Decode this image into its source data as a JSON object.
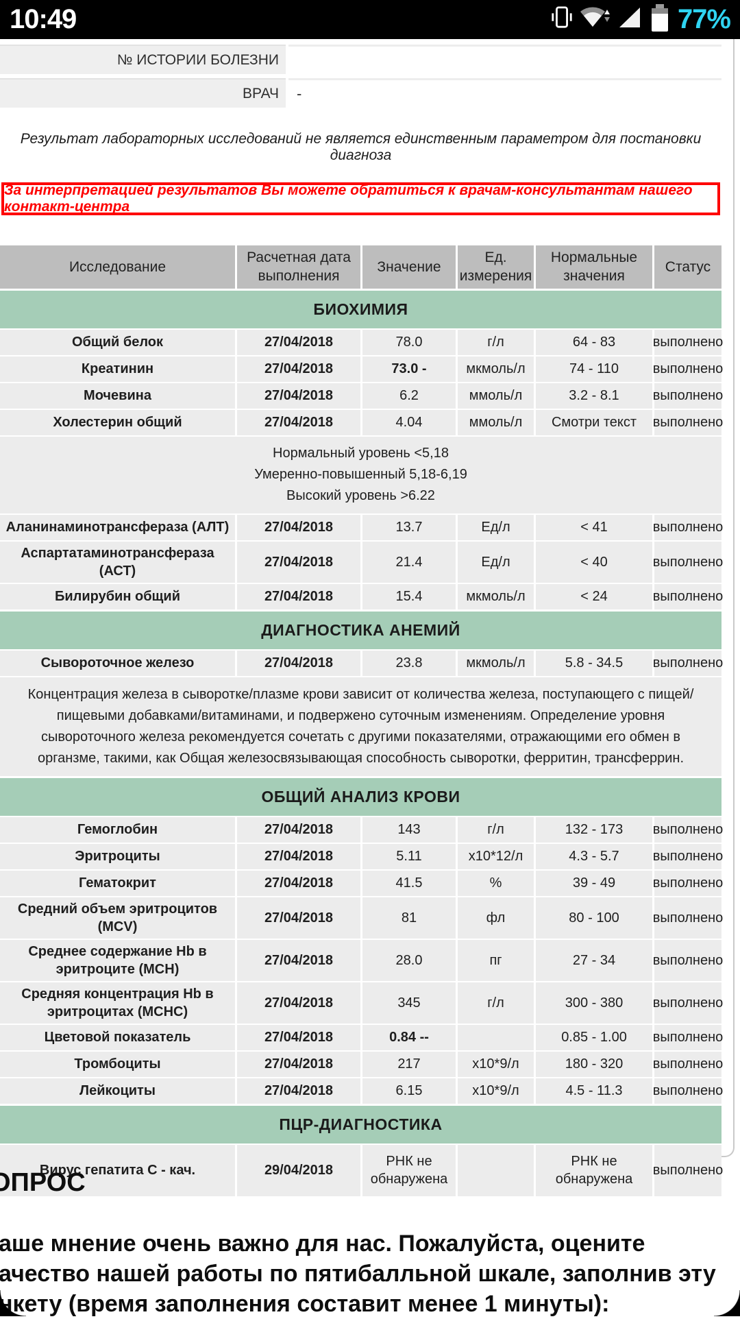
{
  "status_bar": {
    "time": "10:49",
    "battery_percent": "77%",
    "icons": [
      "vibrate-icon",
      "wifi-icon",
      "signal-icon",
      "battery-icon"
    ],
    "colors": {
      "background": "#000000",
      "time_text": "#ffffff",
      "battery_text": "#2fd4f2"
    }
  },
  "header_fields": [
    {
      "label": "№ ИСТОРИИ БОЛЕЗНИ",
      "value": ""
    },
    {
      "label": "ВРАЧ",
      "value": "-"
    }
  ],
  "disclaimer": "Результат лабораторных исследований не является единственным параметром для постановки диагноза",
  "warning": "За интерпретацией результатов Вы можете обратиться к врачам-консультантам нашего контакт-центра",
  "theme": {
    "section_band": "#a5cdb7",
    "table_header": "#bdbdbd",
    "row_background": "#ececec",
    "warning_red": "#fe0000"
  },
  "table": {
    "columns": [
      "Исследование",
      "Расчетная дата выполнения",
      "Значение",
      "Ед. измерения",
      "Нормальные значения",
      "Статус"
    ],
    "sections": [
      {
        "title": "БИОХИМИЯ",
        "items": [
          {
            "type": "row",
            "name": "Общий белок",
            "date": "27/04/2018",
            "value": "78.0",
            "unit": "г/л",
            "norm": "64 - 83",
            "status": "выполнено"
          },
          {
            "type": "row",
            "name": "Креатинин",
            "date": "27/04/2018",
            "value": "73.0 -",
            "value_flag": true,
            "unit": "мкмоль/л",
            "norm": "74 - 110",
            "status": "выполнено"
          },
          {
            "type": "row",
            "name": "Мочевина",
            "date": "27/04/2018",
            "value": "6.2",
            "unit": "ммоль/л",
            "norm": "3.2 - 8.1",
            "status": "выполнено"
          },
          {
            "type": "row",
            "name": "Холестерин общий",
            "date": "27/04/2018",
            "value": "4.04",
            "unit": "ммоль/л",
            "norm": "Смотри текст",
            "status": "выполнено"
          },
          {
            "type": "note",
            "lines": [
              "Нормальный уровень <5,18",
              "Умеренно-повышенный 5,18-6,19",
              "Высокий уровень >6.22"
            ]
          },
          {
            "type": "row",
            "name": "Аланинаминотрансфераза (АЛТ)",
            "date": "27/04/2018",
            "value": "13.7",
            "unit": "Ед/л",
            "norm": "< 41",
            "status": "выполнено"
          },
          {
            "type": "row",
            "name": "Аспартатаминотрансфераза (АСТ)",
            "date": "27/04/2018",
            "value": "21.4",
            "unit": "Ед/л",
            "norm": "< 40",
            "status": "выполнено"
          },
          {
            "type": "row",
            "name": "Билирубин общий",
            "date": "27/04/2018",
            "value": "15.4",
            "unit": "мкмоль/л",
            "norm": "< 24",
            "status": "выполнено"
          }
        ]
      },
      {
        "title": "ДИАГНОСТИКА АНЕМИЙ",
        "items": [
          {
            "type": "row",
            "name": "Сывороточное железо",
            "date": "27/04/2018",
            "value": "23.8",
            "unit": "мкмоль/л",
            "norm": "5.8 - 34.5",
            "status": "выполнено"
          },
          {
            "type": "note",
            "text": "Концентрация железа в сыворотке/плазме крови зависит от количества железа, поступающего с пищей/пищевыми добавками/витаминами, и подвержено суточным изменениям. Определение уровня сывороточного железа рекомендуется сочетать с другими показателями, отражающими его обмен в органзме, такими, как Общая железосвязывающая способность сыворотки, ферритин, трансферрин."
          }
        ]
      },
      {
        "title": "ОБЩИЙ АНАЛИЗ КРОВИ",
        "items": [
          {
            "type": "row",
            "name": "Гемоглобин",
            "date": "27/04/2018",
            "value": "143",
            "unit": "г/л",
            "norm": "132 - 173",
            "status": "выполнено"
          },
          {
            "type": "row",
            "name": "Эритроциты",
            "date": "27/04/2018",
            "value": "5.11",
            "unit": "х10*12/л",
            "norm": "4.3 - 5.7",
            "status": "выполнено"
          },
          {
            "type": "row",
            "name": "Гематокрит",
            "date": "27/04/2018",
            "value": "41.5",
            "unit": "%",
            "norm": "39 - 49",
            "status": "выполнено"
          },
          {
            "type": "row",
            "name": "Средний объем эритроцитов (MCV)",
            "date": "27/04/2018",
            "value": "81",
            "unit": "фл",
            "norm": "80 - 100",
            "status": "выполнено"
          },
          {
            "type": "row",
            "name": "Среднее содержание Hb в эритроците (MCH)",
            "date": "27/04/2018",
            "value": "28.0",
            "unit": "пг",
            "norm": "27 - 34",
            "status": "выполнено"
          },
          {
            "type": "row",
            "name": "Средняя концентрация Hb в эритроцитах (MCHC)",
            "date": "27/04/2018",
            "value": "345",
            "unit": "г/л",
            "norm": "300 - 380",
            "status": "выполнено"
          },
          {
            "type": "row",
            "name": "Цветовой показатель",
            "date": "27/04/2018",
            "value": "0.84 --",
            "value_flag": true,
            "unit": "",
            "norm": "0.85 - 1.00",
            "status": "выполнено"
          },
          {
            "type": "row",
            "name": "Тромбоциты",
            "date": "27/04/2018",
            "value": "217",
            "unit": "х10*9/л",
            "norm": "180 - 320",
            "status": "выполнено"
          },
          {
            "type": "row",
            "name": "Лейкоциты",
            "date": "27/04/2018",
            "value": "6.15",
            "unit": "х10*9/л",
            "norm": "4.5 - 11.3",
            "status": "выполнено"
          }
        ]
      },
      {
        "title": "ПЦР-ДИАГНОСТИКА",
        "items": [
          {
            "type": "row",
            "tall": true,
            "name": "Вирус гепатита С - кач.",
            "date": "29/04/2018",
            "value": "РНК не обнаружена",
            "unit": "",
            "norm": "РНК не обнаружена",
            "status": "выполнено"
          }
        ]
      }
    ]
  },
  "survey": {
    "heading": "ОПРОС",
    "lines": [
      "аше мнение очень важно для нас. Пожалуйста, оцените",
      "ачество нашей работы по пятибалльной шкале, заполнив эту",
      "нкету (время заполнения составит менее 1 минуты):"
    ]
  }
}
